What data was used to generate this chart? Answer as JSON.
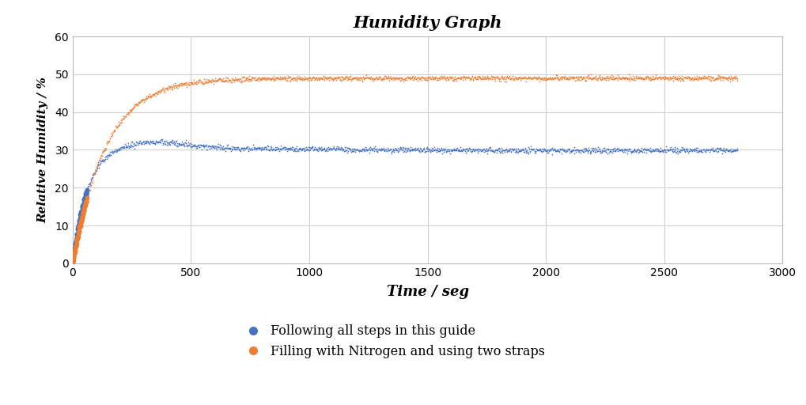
{
  "title": "Humidity Graph",
  "xlabel": "Time / seg",
  "ylabel": "Relative Humidity / %",
  "xlim": [
    0,
    3000
  ],
  "ylim": [
    0,
    60
  ],
  "xticks": [
    0,
    500,
    1000,
    1500,
    2000,
    2500,
    3000
  ],
  "yticks": [
    0,
    10,
    20,
    30,
    40,
    50,
    60
  ],
  "blue_color": "#4472C4",
  "orange_color": "#ED7D31",
  "legend_labels": [
    "Following all steps in this guide",
    "Filling with Nitrogen and using two straps"
  ],
  "background_color": "#FFFFFF",
  "grid_color": "#D0D0D0",
  "figsize": [
    10.2,
    5.12
  ],
  "dpi": 100
}
